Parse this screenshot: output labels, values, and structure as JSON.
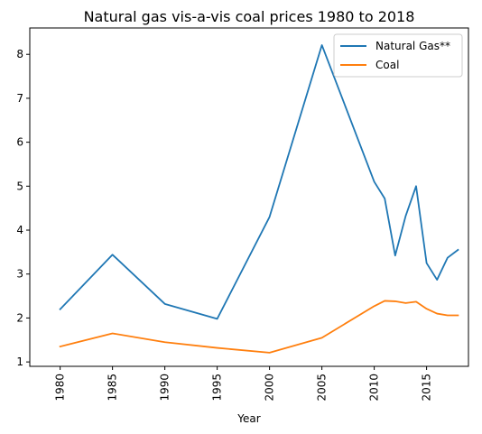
{
  "chart_data": {
    "type": "line",
    "title": "Natural gas vis-a-vis coal prices 1980 to 2018",
    "xlabel": "Year",
    "ylabel": "",
    "xlim": [
      1977.1,
      2019.0
    ],
    "ylim": [
      0.9,
      8.6
    ],
    "xticks": [
      1980,
      1985,
      1990,
      1995,
      2000,
      2005,
      2010,
      2015
    ],
    "yticks": [
      1,
      2,
      3,
      4,
      5,
      6,
      7,
      8
    ],
    "grid": false,
    "legend_position": "top-right",
    "series": [
      {
        "name": "Natural Gas**",
        "color": "#1f77b4",
        "x": [
          1980,
          1985,
          1990,
          1995,
          2000,
          2005,
          2010,
          2011,
          2012,
          2013,
          2014,
          2015,
          2016,
          2017,
          2018
        ],
        "y": [
          2.2,
          3.44,
          2.32,
          1.98,
          4.3,
          8.21,
          5.1,
          4.72,
          3.42,
          4.32,
          5.0,
          3.25,
          2.87,
          3.37,
          3.55
        ]
      },
      {
        "name": "Coal",
        "color": "#ff7f0e",
        "x": [
          1980,
          1985,
          1990,
          1995,
          2000,
          2005,
          2010,
          2011,
          2012,
          2013,
          2014,
          2015,
          2016,
          2017,
          2018
        ],
        "y": [
          1.35,
          1.65,
          1.45,
          1.32,
          1.21,
          1.55,
          2.27,
          2.39,
          2.38,
          2.34,
          2.37,
          2.21,
          2.1,
          2.06,
          2.06
        ]
      }
    ]
  }
}
